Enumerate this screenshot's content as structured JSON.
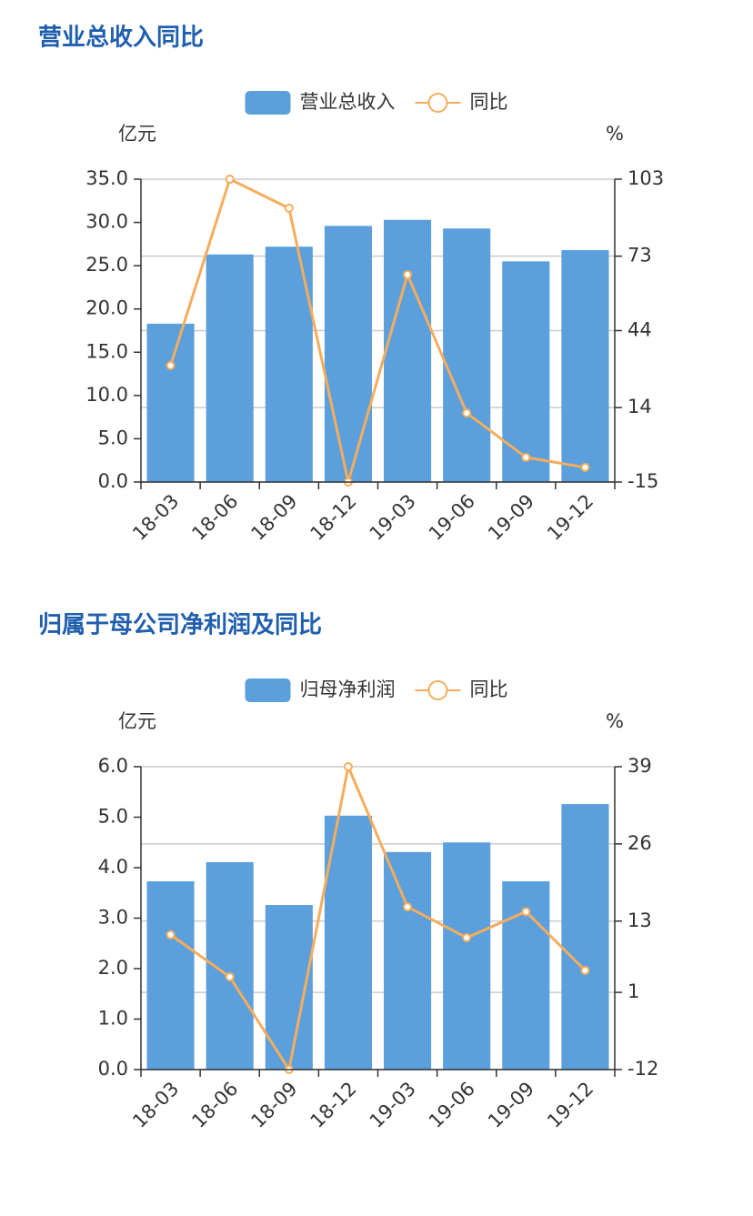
{
  "chart_data": [
    {
      "type": "bar_line",
      "title": "营业总收入同比",
      "ylabel": "亿元",
      "y2label": "%",
      "categories": [
        "18-03",
        "18-06",
        "18-09",
        "18-12",
        "19-03",
        "19-06",
        "19-09",
        "19-12"
      ],
      "series": [
        {
          "name": "营业总收入",
          "type": "bar",
          "color": "#5b9fdc",
          "values": [
            18.3,
            26.3,
            27.2,
            29.6,
            30.3,
            29.3,
            25.5,
            26.8
          ]
        },
        {
          "name": "同比",
          "type": "line",
          "axis": "y2",
          "color": "#f5ad5d",
          "values": [
            30.4,
            103,
            91.7,
            -15,
            65.8,
            11.9,
            -5.4,
            -9.3
          ]
        }
      ],
      "ylim": [
        0,
        35
      ],
      "yticks": [
        {
          "value": 0,
          "label": "0.0"
        },
        {
          "value": 5,
          "label": "5.0"
        },
        {
          "value": 10,
          "label": "10.0"
        },
        {
          "value": 15,
          "label": "15.0"
        },
        {
          "value": 20,
          "label": "20.0"
        },
        {
          "value": 25,
          "label": "25.0"
        },
        {
          "value": 30,
          "label": "30.0"
        },
        {
          "value": 35,
          "label": "35.0"
        }
      ],
      "y2lim": [
        -15,
        103
      ],
      "y2ticks": [
        -15,
        14,
        44,
        73,
        103
      ],
      "grid": true
    },
    {
      "type": "bar_line",
      "title": "归属于母公司净利润及同比",
      "ylabel": "亿元",
      "y2label": "%",
      "categories": [
        "18-03",
        "18-06",
        "18-09",
        "18-12",
        "19-03",
        "19-06",
        "19-09",
        "19-12"
      ],
      "series": [
        {
          "name": "归母净利润",
          "type": "bar",
          "color": "#5b9fdc",
          "values": [
            3.73,
            4.11,
            3.26,
            5.03,
            4.31,
            4.5,
            3.73,
            5.26
          ]
        },
        {
          "name": "同比",
          "type": "line",
          "axis": "y2",
          "color": "#f5ad5d",
          "values": [
            10.7,
            3.6,
            -12,
            39,
            15.4,
            10.2,
            14.6,
            4.7
          ]
        }
      ],
      "ylim": [
        0,
        6
      ],
      "yticks": [
        {
          "value": 0,
          "label": "0.0"
        },
        {
          "value": 1,
          "label": "1.0"
        },
        {
          "value": 2,
          "label": "2.0"
        },
        {
          "value": 3,
          "label": "3.0"
        },
        {
          "value": 4,
          "label": "4.0"
        },
        {
          "value": 5,
          "label": "5.0"
        },
        {
          "value": 6,
          "label": "6.0"
        }
      ],
      "y2lim": [
        -12,
        39
      ],
      "y2ticks": [
        -12,
        1,
        13,
        26,
        39
      ],
      "grid": true
    }
  ]
}
